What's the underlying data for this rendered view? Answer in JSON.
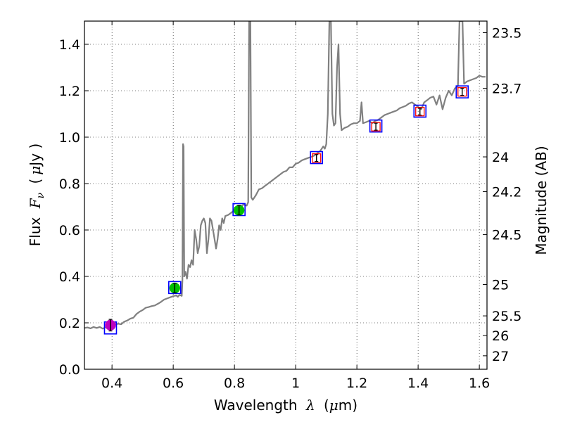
{
  "chart_data": {
    "type": "line",
    "xlabel": "Wavelength",
    "xlabel_symbol": "λ",
    "xlabel_unit_open": "(",
    "xlabel_unit": "μ",
    "xlabel_unit_rest": "m)",
    "ylabel": "Flux",
    "ylabel_symbol": "F",
    "ylabel_subscript": "ν",
    "ylabel_unit_open": "(",
    "ylabel_unit": "μ",
    "ylabel_unit_rest": "Jy )",
    "y2label": "Magnitude (AB)",
    "xlim": [
      0.31,
      1.625
    ],
    "ylim": [
      0.0,
      1.5
    ],
    "grid": true,
    "x_ticks": [
      {
        "value": 0.4,
        "label": "0.4"
      },
      {
        "value": 0.6,
        "label": "0.6"
      },
      {
        "value": 0.8,
        "label": "0.8"
      },
      {
        "value": 1.0,
        "label": "1"
      },
      {
        "value": 1.2,
        "label": "1.2"
      },
      {
        "value": 1.4,
        "label": "1.4"
      },
      {
        "value": 1.6,
        "label": "1.6"
      }
    ],
    "y_ticks": [
      {
        "value": 0.0,
        "label": "0.0"
      },
      {
        "value": 0.2,
        "label": "0.2"
      },
      {
        "value": 0.4,
        "label": "0.4"
      },
      {
        "value": 0.6,
        "label": "0.6"
      },
      {
        "value": 0.8,
        "label": "0.8"
      },
      {
        "value": 1.0,
        "label": "1.0"
      },
      {
        "value": 1.2,
        "label": "1.2"
      },
      {
        "value": 1.4,
        "label": "1.4"
      }
    ],
    "mag_ticks": [
      {
        "flux": 1.45,
        "label": "23.5"
      },
      {
        "flux": 1.21,
        "label": "23.7"
      },
      {
        "flux": 0.915,
        "label": "24"
      },
      {
        "flux": 0.765,
        "label": "24.2"
      },
      {
        "flux": 0.58,
        "label": "24.5"
      },
      {
        "flux": 0.365,
        "label": "25"
      },
      {
        "flux": 0.23,
        "label": "25.5"
      },
      {
        "flux": 0.145,
        "label": "26"
      },
      {
        "flux": 0.058,
        "label": "27"
      }
    ],
    "spectrum": {
      "name": "model spectrum",
      "color": "#808080",
      "points": [
        [
          0.31,
          0.178
        ],
        [
          0.32,
          0.18
        ],
        [
          0.33,
          0.176
        ],
        [
          0.34,
          0.182
        ],
        [
          0.35,
          0.178
        ],
        [
          0.36,
          0.182
        ],
        [
          0.37,
          0.175
        ],
        [
          0.38,
          0.181
        ],
        [
          0.39,
          0.185
        ],
        [
          0.4,
          0.182
        ],
        [
          0.41,
          0.192
        ],
        [
          0.42,
          0.196
        ],
        [
          0.43,
          0.194
        ],
        [
          0.44,
          0.205
        ],
        [
          0.45,
          0.21
        ],
        [
          0.46,
          0.218
        ],
        [
          0.47,
          0.222
        ],
        [
          0.48,
          0.238
        ],
        [
          0.49,
          0.248
        ],
        [
          0.5,
          0.255
        ],
        [
          0.51,
          0.265
        ],
        [
          0.52,
          0.268
        ],
        [
          0.53,
          0.272
        ],
        [
          0.54,
          0.275
        ],
        [
          0.55,
          0.282
        ],
        [
          0.56,
          0.29
        ],
        [
          0.57,
          0.3
        ],
        [
          0.58,
          0.305
        ],
        [
          0.59,
          0.31
        ],
        [
          0.6,
          0.315
        ],
        [
          0.61,
          0.318
        ],
        [
          0.615,
          0.312
        ],
        [
          0.62,
          0.32
        ],
        [
          0.625,
          0.318
        ],
        [
          0.628,
          0.316
        ],
        [
          0.63,
          0.38
        ],
        [
          0.632,
          0.97
        ],
        [
          0.634,
          0.96
        ],
        [
          0.636,
          0.4
        ],
        [
          0.64,
          0.42
        ],
        [
          0.645,
          0.39
        ],
        [
          0.65,
          0.45
        ],
        [
          0.655,
          0.44
        ],
        [
          0.66,
          0.47
        ],
        [
          0.665,
          0.45
        ],
        [
          0.67,
          0.6
        ],
        [
          0.675,
          0.56
        ],
        [
          0.68,
          0.5
        ],
        [
          0.685,
          0.53
        ],
        [
          0.69,
          0.62
        ],
        [
          0.695,
          0.64
        ],
        [
          0.7,
          0.65
        ],
        [
          0.705,
          0.63
        ],
        [
          0.71,
          0.5
        ],
        [
          0.715,
          0.56
        ],
        [
          0.72,
          0.65
        ],
        [
          0.725,
          0.64
        ],
        [
          0.73,
          0.6
        ],
        [
          0.735,
          0.56
        ],
        [
          0.74,
          0.52
        ],
        [
          0.745,
          0.56
        ],
        [
          0.75,
          0.62
        ],
        [
          0.755,
          0.6
        ],
        [
          0.76,
          0.65
        ],
        [
          0.765,
          0.63
        ],
        [
          0.77,
          0.66
        ],
        [
          0.78,
          0.665
        ],
        [
          0.79,
          0.675
        ],
        [
          0.8,
          0.685
        ],
        [
          0.81,
          0.69
        ],
        [
          0.82,
          0.7
        ],
        [
          0.83,
          0.71
        ],
        [
          0.84,
          0.705
        ],
        [
          0.845,
          0.72
        ],
        [
          0.848,
          1.5
        ],
        [
          0.852,
          1.5
        ],
        [
          0.855,
          0.74
        ],
        [
          0.86,
          0.73
        ],
        [
          0.87,
          0.75
        ],
        [
          0.88,
          0.775
        ],
        [
          0.89,
          0.78
        ],
        [
          0.9,
          0.79
        ],
        [
          0.91,
          0.8
        ],
        [
          0.92,
          0.81
        ],
        [
          0.93,
          0.82
        ],
        [
          0.94,
          0.83
        ],
        [
          0.95,
          0.84
        ],
        [
          0.96,
          0.85
        ],
        [
          0.97,
          0.855
        ],
        [
          0.98,
          0.87
        ],
        [
          0.99,
          0.87
        ],
        [
          1.0,
          0.885
        ],
        [
          1.01,
          0.89
        ],
        [
          1.02,
          0.9
        ],
        [
          1.03,
          0.905
        ],
        [
          1.04,
          0.91
        ],
        [
          1.05,
          0.915
        ],
        [
          1.06,
          0.92
        ],
        [
          1.07,
          0.93
        ],
        [
          1.08,
          0.94
        ],
        [
          1.09,
          0.96
        ],
        [
          1.095,
          0.95
        ],
        [
          1.1,
          0.97
        ],
        [
          1.105,
          1.1
        ],
        [
          1.11,
          1.5
        ],
        [
          1.115,
          1.5
        ],
        [
          1.12,
          1.1
        ],
        [
          1.125,
          1.05
        ],
        [
          1.13,
          1.06
        ],
        [
          1.135,
          1.3
        ],
        [
          1.14,
          1.4
        ],
        [
          1.145,
          1.1
        ],
        [
          1.15,
          1.03
        ],
        [
          1.16,
          1.04
        ],
        [
          1.17,
          1.045
        ],
        [
          1.18,
          1.055
        ],
        [
          1.19,
          1.06
        ],
        [
          1.2,
          1.06
        ],
        [
          1.21,
          1.07
        ],
        [
          1.215,
          1.15
        ],
        [
          1.22,
          1.06
        ],
        [
          1.23,
          1.065
        ],
        [
          1.24,
          1.07
        ],
        [
          1.25,
          1.06
        ],
        [
          1.26,
          1.07
        ],
        [
          1.27,
          1.075
        ],
        [
          1.28,
          1.085
        ],
        [
          1.29,
          1.095
        ],
        [
          1.3,
          1.1
        ],
        [
          1.31,
          1.105
        ],
        [
          1.32,
          1.11
        ],
        [
          1.33,
          1.115
        ],
        [
          1.34,
          1.125
        ],
        [
          1.35,
          1.13
        ],
        [
          1.36,
          1.135
        ],
        [
          1.37,
          1.145
        ],
        [
          1.38,
          1.15
        ],
        [
          1.39,
          1.14
        ],
        [
          1.4,
          1.13
        ],
        [
          1.41,
          1.12
        ],
        [
          1.42,
          1.15
        ],
        [
          1.43,
          1.16
        ],
        [
          1.44,
          1.17
        ],
        [
          1.45,
          1.175
        ],
        [
          1.46,
          1.14
        ],
        [
          1.47,
          1.18
        ],
        [
          1.48,
          1.12
        ],
        [
          1.49,
          1.17
        ],
        [
          1.5,
          1.2
        ],
        [
          1.51,
          1.18
        ],
        [
          1.52,
          1.21
        ],
        [
          1.53,
          1.22
        ],
        [
          1.535,
          1.5
        ],
        [
          1.545,
          1.5
        ],
        [
          1.55,
          1.23
        ],
        [
          1.56,
          1.24
        ],
        [
          1.57,
          1.245
        ],
        [
          1.58,
          1.25
        ],
        [
          1.59,
          1.255
        ],
        [
          1.6,
          1.265
        ],
        [
          1.61,
          1.26
        ],
        [
          1.62,
          1.26
        ]
      ]
    },
    "photometry": [
      {
        "x": 0.395,
        "model": 0.178,
        "obs": 0.19,
        "err": 0.025,
        "fill": "#bf00bf"
      },
      {
        "x": 0.605,
        "model": 0.352,
        "obs": 0.35,
        "err": 0.02,
        "fill": "#00bf00"
      },
      {
        "x": 0.815,
        "model": 0.688,
        "obs": 0.685,
        "err": 0.02,
        "fill": "#00bf00"
      },
      {
        "x": 1.068,
        "model": 0.912,
        "obs": 0.91,
        "err": 0.015,
        "fill": "none"
      },
      {
        "x": 1.262,
        "model": 1.048,
        "obs": 1.045,
        "err": 0.015,
        "fill": "none"
      },
      {
        "x": 1.406,
        "model": 1.112,
        "obs": 1.11,
        "err": 0.015,
        "fill": "none"
      },
      {
        "x": 1.544,
        "model": 1.195,
        "obs": 1.195,
        "err": 0.015,
        "fill": "none"
      }
    ],
    "marker_colors": {
      "model": "#0000ff",
      "upper_limit": "#ff0000",
      "errorbar": "#000000"
    }
  }
}
